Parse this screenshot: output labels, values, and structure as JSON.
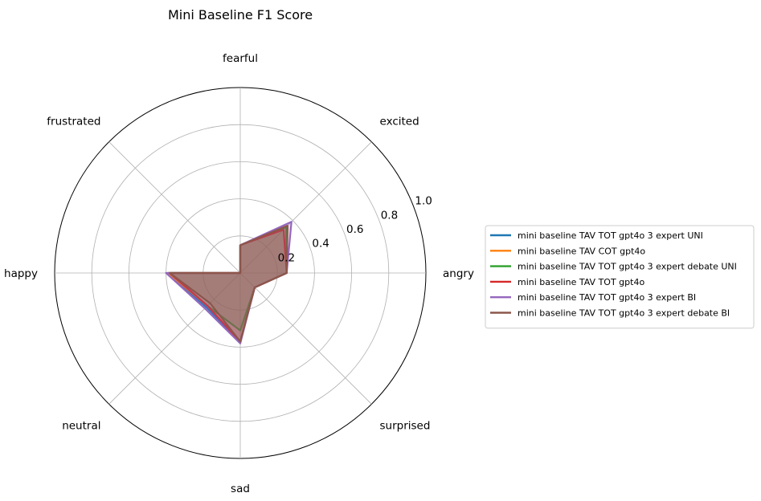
{
  "chart_data": {
    "type": "radar",
    "title": "Mini Baseline F1 Score",
    "categories": [
      "angry",
      "excited",
      "fearful",
      "frustrated",
      "happy",
      "neutral",
      "sad",
      "surprised"
    ],
    "rlim": [
      0,
      1.0
    ],
    "rticks": [
      0.2,
      0.4,
      0.6,
      0.8,
      1.0
    ],
    "rtick_labels": [
      "0.2",
      "0.4",
      "0.6",
      "0.8",
      "1.0"
    ],
    "grid": true,
    "legend_position": "right",
    "series": [
      {
        "name": "mini baseline TAV TOT gpt4o 3 expert UNI",
        "color": "#1f77b4",
        "values": [
          0.25,
          0.35,
          0.15,
          0.0,
          0.39,
          0.26,
          0.37,
          0.11
        ]
      },
      {
        "name": "mini baseline TAV COT gpt4o",
        "color": "#ff7f0e",
        "values": [
          0.25,
          0.36,
          0.15,
          0.0,
          0.39,
          0.25,
          0.37,
          0.11
        ]
      },
      {
        "name": "mini baseline TAV TOT gpt4o 3 expert debate UNI",
        "color": "#2ca02c",
        "values": [
          0.25,
          0.35,
          0.15,
          0.0,
          0.38,
          0.25,
          0.31,
          0.11
        ]
      },
      {
        "name": "mini baseline TAV TOT gpt4o",
        "color": "#d62728",
        "values": [
          0.25,
          0.33,
          0.15,
          0.0,
          0.38,
          0.25,
          0.37,
          0.11
        ]
      },
      {
        "name": "mini baseline TAV TOT gpt4o 3 expert BI",
        "color": "#9467bd",
        "values": [
          0.25,
          0.39,
          0.15,
          0.0,
          0.4,
          0.27,
          0.38,
          0.11
        ]
      },
      {
        "name": "mini baseline TAV TOT gpt4o 3 expert debate BI",
        "color": "#8c564b",
        "values": [
          0.25,
          0.36,
          0.15,
          0.0,
          0.38,
          0.23,
          0.37,
          0.11
        ]
      }
    ]
  }
}
